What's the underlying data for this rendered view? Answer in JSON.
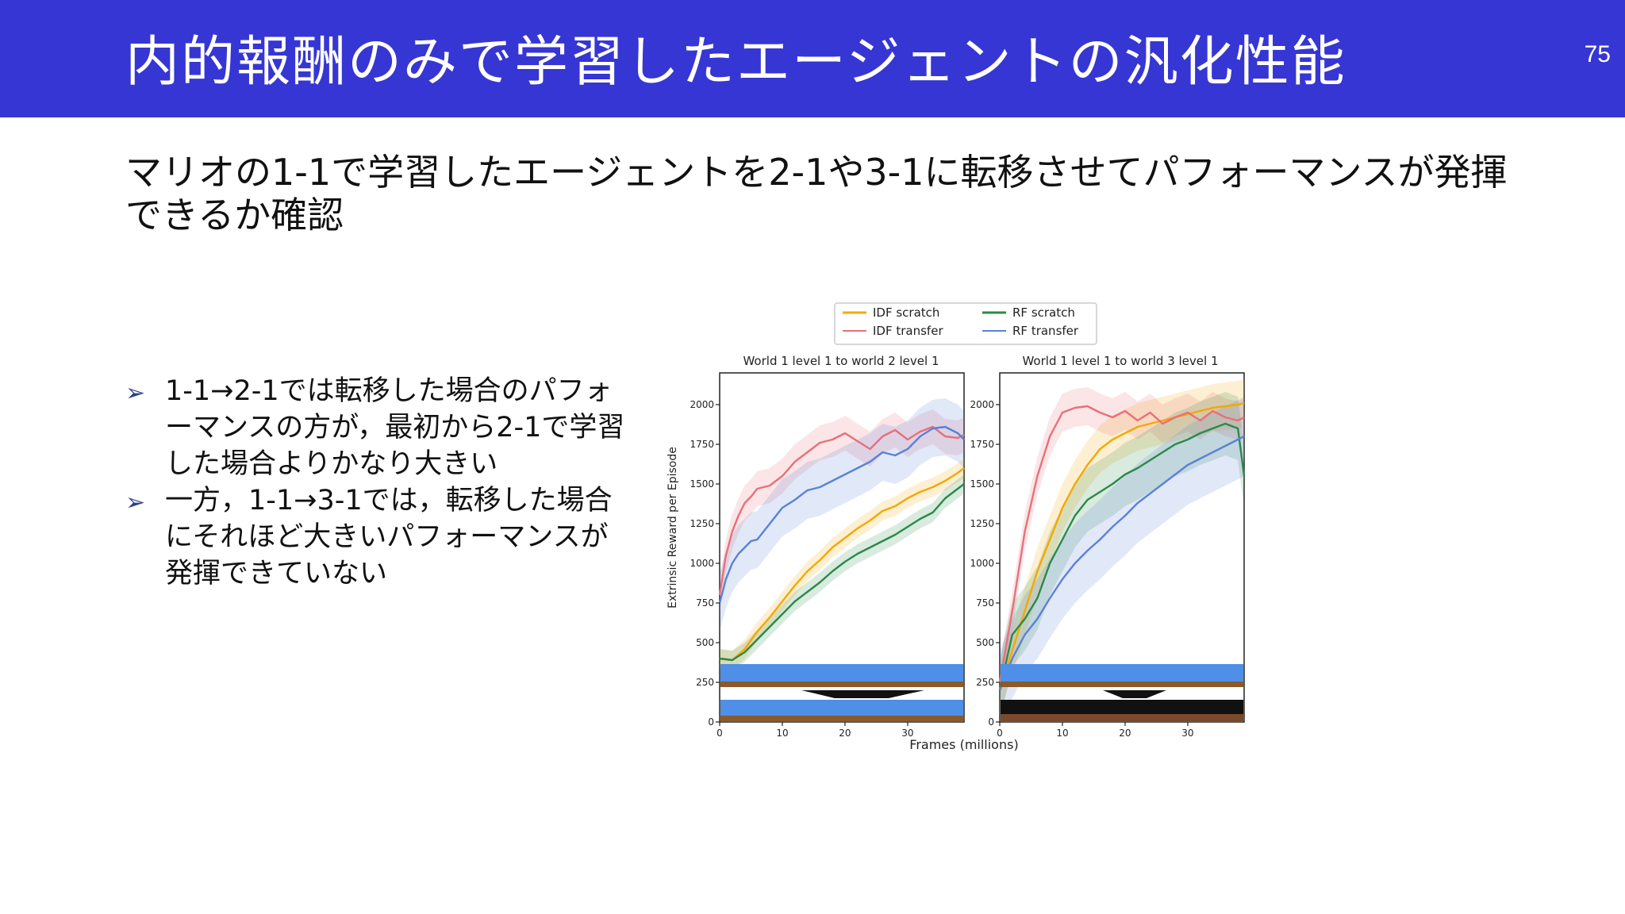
{
  "slide": {
    "title": "内的報酬のみで学習したエージェントの汎化性能",
    "page_number": "75",
    "subtitle": "マリオの1-1で学習したエージェントを2-1や3-1に転移させてパフォーマンスが発揮できるか確認",
    "bullets": [
      "1-1→2-1では転移した場合のパフォーマンスの方が，最初から2-1で学習した場合よりかなり大きい",
      "一方，1-1→3-1では，転移した場合にそれほど大きいパフォーマンスが発揮できていない"
    ],
    "bullet_icon": "arrow-bullet-icon"
  },
  "chart_data": {
    "type": "line",
    "ylabel": "Extrinsic Reward per Episode",
    "xlabel": "Frames (millions)",
    "legend_position": "top-center",
    "legend": [
      "IDF scratch",
      "IDF transfer",
      "RF scratch",
      "RF transfer"
    ],
    "colors": {
      "IDF scratch": "#f5a800",
      "IDF transfer": "#e8707a",
      "RF scratch": "#2a8a4a",
      "RF transfer": "#5a82d8"
    },
    "x_ticks": [
      0,
      10,
      20,
      30
    ],
    "y_ticks": [
      0,
      250,
      500,
      750,
      1000,
      1250,
      1500,
      1750,
      2000
    ],
    "y_tick_labels": [
      "0",
      "250",
      "500",
      "750",
      "1000",
      "1250",
      "1500",
      "1750",
      "2000"
    ],
    "x_tick_labels": [
      "0",
      "10",
      "20",
      "30"
    ],
    "xlim": [
      0,
      39
    ],
    "ylim": [
      0,
      2200
    ],
    "panels": [
      {
        "title": "World 1 level 1 to world 2 level 1",
        "series": [
          {
            "name": "IDF scratch",
            "x": [
              0,
              2,
              4,
              6,
              8,
              10,
              12,
              14,
              16,
              18,
              20,
              22,
              24,
              26,
              28,
              30,
              32,
              34,
              36,
              38,
              39
            ],
            "y": [
              400,
              390,
              460,
              570,
              660,
              760,
              860,
              950,
              1020,
              1100,
              1160,
              1220,
              1270,
              1330,
              1360,
              1410,
              1450,
              1480,
              1520,
              1570,
              1600
            ],
            "band": 60
          },
          {
            "name": "IDF transfer",
            "x": [
              0,
              1,
              2,
              3,
              4,
              5,
              6,
              7,
              8,
              10,
              12,
              14,
              16,
              18,
              20,
              22,
              24,
              26,
              28,
              30,
              32,
              34,
              36,
              38,
              39
            ],
            "y": [
              800,
              1050,
              1200,
              1300,
              1380,
              1420,
              1470,
              1480,
              1490,
              1550,
              1640,
              1700,
              1760,
              1780,
              1820,
              1770,
              1720,
              1800,
              1840,
              1780,
              1830,
              1860,
              1800,
              1790,
              1810
            ],
            "band": 110
          },
          {
            "name": "RF scratch",
            "x": [
              0,
              2,
              4,
              6,
              8,
              10,
              12,
              14,
              16,
              18,
              20,
              22,
              24,
              26,
              28,
              30,
              32,
              34,
              36,
              38,
              39
            ],
            "y": [
              400,
              390,
              440,
              520,
              600,
              680,
              760,
              820,
              880,
              950,
              1010,
              1060,
              1100,
              1140,
              1180,
              1230,
              1280,
              1320,
              1410,
              1470,
              1500
            ],
            "band": 60
          },
          {
            "name": "RF transfer",
            "x": [
              0,
              1,
              2,
              3,
              4,
              5,
              6,
              8,
              10,
              12,
              14,
              16,
              18,
              20,
              22,
              24,
              26,
              28,
              30,
              32,
              34,
              36,
              38,
              39
            ],
            "y": [
              750,
              900,
              1000,
              1060,
              1100,
              1140,
              1150,
              1250,
              1350,
              1400,
              1460,
              1480,
              1520,
              1560,
              1600,
              1640,
              1700,
              1680,
              1720,
              1800,
              1850,
              1860,
              1820,
              1780
            ],
            "band": 180
          }
        ]
      },
      {
        "title": "World 1 level 1 to world 3 level 1",
        "series": [
          {
            "name": "IDF scratch",
            "x": [
              0,
              2,
              4,
              6,
              8,
              10,
              12,
              14,
              16,
              18,
              20,
              22,
              24,
              26,
              28,
              30,
              32,
              34,
              36,
              38,
              39
            ],
            "y": [
              200,
              450,
              700,
              950,
              1150,
              1350,
              1500,
              1620,
              1720,
              1780,
              1820,
              1860,
              1880,
              1900,
              1920,
              1940,
              1960,
              1980,
              1990,
              2000,
              2010
            ],
            "band": 150
          },
          {
            "name": "IDF transfer",
            "x": [
              0,
              2,
              4,
              6,
              8,
              10,
              12,
              14,
              16,
              18,
              20,
              22,
              24,
              26,
              28,
              30,
              32,
              34,
              36,
              38,
              39
            ],
            "y": [
              250,
              700,
              1200,
              1550,
              1800,
              1950,
              1980,
              1990,
              1950,
              1920,
              1960,
              1900,
              1950,
              1880,
              1920,
              1950,
              1900,
              1960,
              1920,
              1900,
              1920
            ],
            "band": 120
          },
          {
            "name": "RF scratch",
            "x": [
              0,
              2,
              4,
              6,
              8,
              10,
              12,
              14,
              16,
              18,
              20,
              22,
              24,
              26,
              28,
              30,
              32,
              34,
              36,
              38,
              39
            ],
            "y": [
              200,
              550,
              650,
              780,
              1000,
              1150,
              1300,
              1400,
              1450,
              1500,
              1560,
              1600,
              1650,
              1700,
              1750,
              1780,
              1820,
              1850,
              1880,
              1850,
              1550
            ],
            "band": 200
          },
          {
            "name": "RF transfer",
            "x": [
              0,
              2,
              4,
              6,
              8,
              10,
              12,
              14,
              16,
              18,
              20,
              22,
              24,
              26,
              28,
              30,
              32,
              34,
              36,
              38,
              39
            ],
            "y": [
              200,
              400,
              550,
              650,
              780,
              900,
              1000,
              1080,
              1150,
              1230,
              1300,
              1380,
              1440,
              1500,
              1560,
              1620,
              1660,
              1700,
              1740,
              1780,
              1800
            ],
            "band": 250
          }
        ]
      }
    ]
  }
}
